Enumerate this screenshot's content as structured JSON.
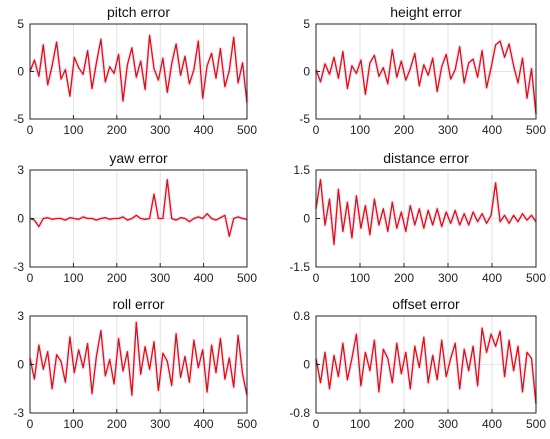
{
  "chart_data": [
    {
      "type": "line",
      "title": "pitch error",
      "xlim": [
        0,
        500
      ],
      "ylim": [
        -5,
        5
      ],
      "xticks": [
        0,
        100,
        200,
        300,
        400,
        500
      ],
      "yticks": [
        -5,
        0,
        5
      ],
      "grid": true,
      "series": [
        {
          "color": "#b22222",
          "values": [
            0,
            1.2,
            -0.5,
            2.8,
            -1.4,
            0.6,
            3.1,
            -0.8,
            0.2,
            -2.6,
            1.5,
            0.4,
            -0.3,
            2.2,
            -1.8,
            0.9,
            3.4,
            -1.1,
            0.5,
            -0.2,
            1.8,
            -3.1,
            0.7,
            2.5,
            -0.6,
            1.1,
            -1.9,
            3.8,
            0.3,
            -0.9,
            1.4,
            -2.2,
            0.8,
            2.9,
            -0.4,
            1.6,
            -1.3,
            0.2,
            3.2,
            -2.8,
            0.6,
            1.9,
            -0.7,
            2.4,
            -1.6,
            0.1,
            3.6,
            -1.2,
            0.9,
            -3.3
          ]
        }
      ]
    },
    {
      "type": "line",
      "title": "height error",
      "xlim": [
        0,
        500
      ],
      "ylim": [
        -5,
        5
      ],
      "xticks": [
        0,
        100,
        200,
        300,
        400,
        500
      ],
      "yticks": [
        -5,
        0,
        5
      ],
      "grid": true,
      "series": [
        {
          "color": "#b22222",
          "values": [
            0.2,
            -1.1,
            0.8,
            -0.3,
            1.5,
            -0.7,
            2.1,
            -1.8,
            0.6,
            -0.2,
            1.2,
            -2.4,
            0.9,
            1.7,
            -0.5,
            0.4,
            -1.3,
            2.3,
            -0.6,
            1.1,
            -0.9,
            0.3,
            1.9,
            -1.5,
            0.7,
            -0.4,
            1.4,
            -2.1,
            0.5,
            1.8,
            -0.8,
            0.2,
            2.6,
            -1.2,
            0.9,
            1.3,
            -0.6,
            2.2,
            -1.7,
            0.4,
            2.8,
            3.2,
            1.5,
            2.9,
            0.6,
            -1.2,
            1.4,
            -2.8,
            0.3,
            -4.5
          ]
        }
      ]
    },
    {
      "type": "line",
      "title": "yaw error",
      "xlim": [
        0,
        500
      ],
      "ylim": [
        -3,
        3
      ],
      "xticks": [
        0,
        100,
        200,
        300,
        400,
        500
      ],
      "yticks": [
        -3,
        0,
        3
      ],
      "grid": true,
      "series": [
        {
          "color": "#b22222",
          "values": [
            0,
            -0.1,
            -0.5,
            0,
            0.05,
            -0.05,
            0,
            0,
            -0.1,
            0.05,
            0,
            -0.05,
            0.1,
            0,
            0,
            -0.1,
            0,
            0.05,
            -0.05,
            0,
            0,
            0.1,
            -0.1,
            0,
            0.2,
            0,
            -0.05,
            0,
            1.5,
            0,
            0,
            2.4,
            0,
            -0.1,
            0.05,
            0,
            -0.2,
            0,
            0.1,
            0,
            0.3,
            0,
            -0.1,
            0.05,
            0.2,
            -1.1,
            0,
            0.1,
            0,
            -0.05
          ]
        }
      ]
    },
    {
      "type": "line",
      "title": "distance error",
      "xlim": [
        0,
        500
      ],
      "ylim": [
        -1.5,
        1.5
      ],
      "xticks": [
        0,
        100,
        200,
        300,
        400,
        500
      ],
      "yticks": [
        -1.5,
        0,
        1.5
      ],
      "grid": true,
      "series": [
        {
          "color": "#b22222",
          "values": [
            0.3,
            1.2,
            -0.2,
            0.6,
            -0.8,
            0.9,
            -0.4,
            0.5,
            -0.6,
            0.7,
            -0.3,
            0.4,
            -0.5,
            0.6,
            -0.2,
            0.3,
            -0.4,
            0.5,
            -0.3,
            0.2,
            -0.4,
            0.4,
            -0.2,
            0.3,
            -0.3,
            0.25,
            -0.2,
            0.3,
            -0.25,
            0.2,
            -0.15,
            0.25,
            -0.2,
            0.15,
            -0.2,
            0.2,
            -0.1,
            0.15,
            -0.15,
            0.1,
            1.1,
            -0.1,
            0.1,
            -0.15,
            0.1,
            -0.1,
            0.15,
            -0.05,
            0.1,
            -0.1
          ]
        }
      ]
    },
    {
      "type": "line",
      "title": "roll error",
      "xlim": [
        0,
        500
      ],
      "ylim": [
        -3,
        3
      ],
      "xticks": [
        0,
        100,
        200,
        300,
        400,
        500
      ],
      "yticks": [
        -3,
        0,
        3
      ],
      "grid": true,
      "series": [
        {
          "color": "#b22222",
          "values": [
            0.4,
            -0.9,
            1.2,
            -0.3,
            0.8,
            -1.5,
            0.6,
            0.2,
            -1.1,
            1.7,
            -0.5,
            0.9,
            -0.2,
            1.3,
            -1.8,
            0.5,
            2.1,
            -0.7,
            0.3,
            -1.2,
            1.6,
            -0.4,
            0.8,
            -1.9,
            2.6,
            -0.6,
            1.1,
            -0.3,
            1.4,
            -1.6,
            0.7,
            0.2,
            -1.3,
            1.9,
            -0.8,
            0.5,
            -1.1,
            1.5,
            -0.2,
            0.9,
            -1.7,
            1.2,
            -0.5,
            1.6,
            -0.9,
            0.4,
            -1.4,
            1.8,
            -0.6,
            -1.9
          ]
        }
      ]
    },
    {
      "type": "line",
      "title": "offset error",
      "xlim": [
        0,
        500
      ],
      "ylim": [
        -0.8,
        0.8
      ],
      "xticks": [
        0,
        100,
        200,
        300,
        400,
        500
      ],
      "yticks": [
        -0.8,
        0,
        0.8
      ],
      "grid": true,
      "series": [
        {
          "color": "#b22222",
          "values": [
            0.1,
            -0.3,
            0.2,
            -0.4,
            0.15,
            -0.2,
            0.35,
            -0.25,
            0.1,
            0.5,
            -0.35,
            0.2,
            -0.1,
            0.4,
            -0.45,
            0.25,
            0.1,
            -0.3,
            0.35,
            -0.15,
            0.2,
            -0.4,
            0.3,
            -0.05,
            0.45,
            -0.3,
            0.15,
            -0.25,
            0.4,
            -0.2,
            0.1,
            0.35,
            -0.4,
            0.25,
            -0.1,
            0.3,
            -0.35,
            0.6,
            0.2,
            0.5,
            0.3,
            0.55,
            -0.2,
            0.4,
            -0.1,
            0.3,
            -0.45,
            0.2,
            0.1,
            -0.65
          ]
        }
      ]
    }
  ]
}
